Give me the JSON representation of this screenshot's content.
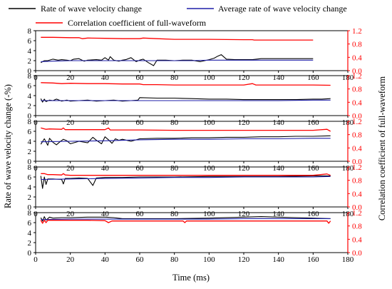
{
  "legend": [
    {
      "label": "Rate of wave velocity change",
      "color": "#000000"
    },
    {
      "label": "Average rate of wave velocity change",
      "color": "#1f1fa8"
    },
    {
      "label": "Correlation coefficient of full-waveform",
      "color": "#ff0000"
    }
  ],
  "xlabel": "Time (ms)",
  "ylabel_left": "Rate of wave velocity change (-%)",
  "ylabel_right": "Correlation coefficient of full-waveform",
  "colors": {
    "rate": "#000000",
    "average": "#1f1fa8",
    "correlation": "#ff0000"
  },
  "chart_data": [
    {
      "type": "line",
      "xlim": [
        0,
        180
      ],
      "ylim_left": [
        0,
        8
      ],
      "ylim_right": [
        0,
        1.2
      ],
      "xticks": [
        "0",
        "20",
        "40",
        "60",
        "80",
        "100",
        "120",
        "140",
        "160",
        "180"
      ],
      "yticks_left": [
        "0",
        "2",
        "4",
        "6",
        "8"
      ],
      "yticks_right": [
        "0.0",
        "0.4",
        "0.8",
        "1.2"
      ],
      "series": [
        {
          "name": "Rate of wave velocity change",
          "axis": "left",
          "x": [
            3,
            5,
            7,
            10,
            13,
            15,
            18,
            20,
            22,
            25,
            28,
            30,
            35,
            38,
            40,
            42,
            43,
            45,
            48,
            50,
            52,
            55,
            58,
            60,
            62,
            65,
            68,
            70,
            75,
            80,
            85,
            90,
            95,
            100,
            103,
            105,
            107,
            110,
            115,
            120,
            125,
            130,
            140,
            150,
            160
          ],
          "y": [
            1.6,
            2.0,
            2.0,
            2.3,
            2.1,
            2.2,
            2.1,
            2.0,
            2.3,
            2.4,
            1.9,
            2.1,
            2.2,
            2.1,
            2.6,
            2.1,
            2.8,
            2.1,
            1.9,
            2.1,
            2.2,
            2.6,
            1.8,
            2.1,
            2.3,
            1.6,
            1.0,
            2.1,
            2.1,
            2.0,
            2.1,
            2.1,
            1.8,
            2.2,
            2.5,
            2.9,
            3.2,
            2.3,
            2.2,
            2.2,
            2.2,
            2.4,
            2.4,
            2.4,
            2.4
          ]
        },
        {
          "name": "Average rate of wave velocity change",
          "axis": "left",
          "x": [
            3,
            10,
            20,
            30,
            40,
            50,
            60,
            70,
            80,
            90,
            100,
            110,
            120,
            130,
            140,
            150,
            160
          ],
          "y": [
            1.8,
            1.9,
            2.0,
            2.0,
            2.0,
            2.0,
            2.0,
            2.0,
            2.0,
            2.0,
            2.1,
            2.1,
            2.1,
            2.1,
            2.1,
            2.1,
            2.1
          ]
        },
        {
          "name": "Correlation coefficient of full-waveform",
          "axis": "right",
          "x": [
            3,
            10,
            20,
            25,
            27,
            30,
            40,
            50,
            60,
            62,
            70,
            80,
            100,
            120,
            125,
            126,
            140,
            160
          ],
          "y": [
            1.0,
            1.0,
            0.99,
            0.99,
            0.96,
            0.98,
            0.97,
            0.96,
            0.96,
            0.98,
            0.96,
            0.94,
            0.94,
            0.93,
            0.93,
            0.92,
            0.92,
            0.92
          ]
        }
      ]
    },
    {
      "type": "line",
      "xlim": [
        0,
        180
      ],
      "ylim_left": [
        0,
        8
      ],
      "ylim_right": [
        0,
        1.2
      ],
      "xticks": [
        "0",
        "20",
        "40",
        "60",
        "80",
        "100",
        "120",
        "140",
        "160",
        "180"
      ],
      "yticks_left": [
        "0",
        "2",
        "4",
        "6",
        "8"
      ],
      "yticks_right": [
        "0.0",
        "0.4",
        "0.8",
        "1.2"
      ],
      "series": [
        {
          "name": "Rate of wave velocity change",
          "axis": "left",
          "x": [
            3,
            4,
            5,
            6,
            8,
            10,
            12,
            15,
            18,
            20,
            25,
            30,
            35,
            40,
            45,
            50,
            55,
            59,
            60,
            70,
            80,
            90,
            100,
            110,
            120,
            130,
            140,
            150,
            160,
            165,
            170
          ],
          "y": [
            3.4,
            2.7,
            3.3,
            2.8,
            3.1,
            3.0,
            3.3,
            2.9,
            3.1,
            2.9,
            3.0,
            3.1,
            2.9,
            3.0,
            3.1,
            2.9,
            3.0,
            3.1,
            3.6,
            3.5,
            3.5,
            3.4,
            3.3,
            3.3,
            3.2,
            3.2,
            3.2,
            3.2,
            3.3,
            3.3,
            3.4
          ]
        },
        {
          "name": "Average rate of wave velocity change",
          "axis": "left",
          "x": [
            3,
            20,
            40,
            60,
            80,
            100,
            120,
            140,
            160,
            170
          ],
          "y": [
            3.0,
            3.0,
            3.0,
            3.0,
            3.0,
            3.0,
            3.0,
            3.0,
            3.1,
            3.1
          ]
        },
        {
          "name": "Correlation coefficient of full-waveform",
          "axis": "right",
          "x": [
            3,
            10,
            15,
            20,
            30,
            40,
            50,
            60,
            62,
            70,
            80,
            100,
            120,
            125,
            127,
            140,
            160,
            170
          ],
          "y": [
            0.99,
            0.98,
            0.96,
            0.97,
            0.96,
            0.96,
            0.95,
            0.95,
            0.93,
            0.93,
            0.92,
            0.92,
            0.92,
            0.96,
            0.92,
            0.92,
            0.92,
            0.91
          ]
        }
      ]
    },
    {
      "type": "line",
      "xlim": [
        0,
        180
      ],
      "ylim_left": [
        0,
        8
      ],
      "ylim_right": [
        0,
        1.2
      ],
      "xticks": [
        "0",
        "20",
        "40",
        "60",
        "80",
        "100",
        "120",
        "140",
        "160",
        "180"
      ],
      "yticks_left": [
        "0",
        "2",
        "4",
        "6",
        "8"
      ],
      "yticks_right": [
        "0.0",
        "0.4",
        "0.8",
        "1.2"
      ],
      "series": [
        {
          "name": "Rate of wave velocity change",
          "axis": "left",
          "x": [
            3,
            5,
            7,
            8,
            10,
            12,
            14,
            16,
            18,
            20,
            25,
            30,
            33,
            35,
            38,
            40,
            42,
            44,
            46,
            48,
            50,
            55,
            60,
            70,
            80,
            90,
            100,
            110,
            120,
            130,
            140,
            150,
            160,
            170
          ],
          "y": [
            3.4,
            4.5,
            3.2,
            4.6,
            3.8,
            3.3,
            3.9,
            4.4,
            4.1,
            3.5,
            4.0,
            3.7,
            4.8,
            4.2,
            3.5,
            4.9,
            4.3,
            3.6,
            4.5,
            4.2,
            4.4,
            4.0,
            4.5,
            4.6,
            4.6,
            4.7,
            4.7,
            4.8,
            4.8,
            4.9,
            4.9,
            5.0,
            5.0,
            5.1
          ]
        },
        {
          "name": "Average rate of wave velocity change",
          "axis": "left",
          "x": [
            3,
            20,
            40,
            60,
            80,
            100,
            120,
            140,
            160,
            170
          ],
          "y": [
            3.9,
            4.0,
            4.1,
            4.3,
            4.4,
            4.4,
            4.5,
            4.5,
            4.6,
            4.6
          ]
        },
        {
          "name": "Correlation coefficient of full-waveform",
          "axis": "right",
          "x": [
            3,
            6,
            8,
            15,
            16,
            17,
            30,
            40,
            42,
            43,
            60,
            80,
            100,
            120,
            140,
            160,
            168,
            170
          ],
          "y": [
            1.0,
            0.96,
            0.97,
            0.96,
            1.0,
            0.95,
            0.95,
            0.95,
            1.0,
            0.94,
            0.94,
            0.93,
            0.93,
            0.93,
            0.93,
            0.93,
            0.96,
            0.9
          ]
        }
      ]
    },
    {
      "type": "line",
      "xlim": [
        0,
        180
      ],
      "ylim_left": [
        0,
        8
      ],
      "ylim_right": [
        0,
        1.2
      ],
      "xticks": [
        "0",
        "20",
        "40",
        "60",
        "80",
        "100",
        "120",
        "140",
        "160",
        "180"
      ],
      "yticks_left": [
        "0",
        "2",
        "4",
        "6",
        "8"
      ],
      "yticks_right": [
        "0.0",
        "0.4",
        "0.8",
        "1.2"
      ],
      "series": [
        {
          "name": "Rate of wave velocity change",
          "axis": "left",
          "x": [
            3,
            4,
            5,
            6,
            7,
            10,
            15,
            16,
            17,
            20,
            25,
            30,
            33,
            35,
            40,
            50,
            60,
            80,
            100,
            120,
            140,
            160,
            170
          ],
          "y": [
            6.2,
            3.7,
            6.0,
            4.5,
            5.6,
            5.6,
            5.5,
            4.6,
            5.7,
            5.7,
            5.8,
            5.7,
            4.3,
            5.8,
            5.9,
            5.9,
            6.0,
            6.0,
            6.1,
            6.1,
            6.1,
            6.2,
            6.2
          ]
        },
        {
          "name": "Average rate of wave velocity change",
          "axis": "left",
          "x": [
            3,
            20,
            40,
            60,
            80,
            100,
            120,
            140,
            160,
            170
          ],
          "y": [
            5.5,
            5.6,
            5.7,
            5.8,
            5.9,
            5.9,
            6.0,
            6.0,
            6.0,
            6.1
          ]
        },
        {
          "name": "Correlation coefficient of full-waveform",
          "axis": "right",
          "x": [
            3,
            5,
            7,
            10,
            15,
            16,
            17,
            20,
            25,
            40,
            60,
            80,
            100,
            120,
            140,
            160,
            168,
            170
          ],
          "y": [
            1.0,
            1.0,
            0.97,
            0.97,
            0.96,
            1.0,
            0.96,
            0.95,
            0.95,
            0.95,
            0.95,
            0.95,
            0.95,
            0.95,
            0.95,
            0.95,
            0.99,
            0.95
          ]
        }
      ]
    },
    {
      "type": "line",
      "xlim": [
        0,
        180
      ],
      "ylim_left": [
        0,
        8
      ],
      "ylim_right": [
        0,
        1.2
      ],
      "xticks": [
        "0",
        "20",
        "40",
        "60",
        "80",
        "100",
        "120",
        "140",
        "160",
        "180"
      ],
      "yticks_left": [
        "0",
        "2",
        "4",
        "6",
        "8"
      ],
      "yticks_right": [
        "0.0",
        "0.4",
        "0.8",
        "1.2"
      ],
      "series": [
        {
          "name": "Rate of wave velocity change",
          "axis": "left",
          "x": [
            3,
            4,
            5,
            6,
            8,
            10,
            15,
            20,
            30,
            40,
            45,
            50,
            60,
            70,
            80,
            100,
            120,
            130,
            140,
            150,
            160,
            170
          ],
          "y": [
            7.0,
            6.3,
            7.2,
            6.5,
            7.1,
            6.9,
            7.0,
            7.0,
            7.1,
            7.1,
            7.0,
            6.8,
            6.8,
            6.8,
            6.8,
            6.9,
            7.1,
            7.2,
            7.1,
            7.0,
            6.9,
            6.8
          ]
        },
        {
          "name": "Average rate of wave velocity change",
          "axis": "left",
          "x": [
            3,
            20,
            40,
            60,
            80,
            100,
            120,
            140,
            160,
            170
          ],
          "y": [
            6.6,
            6.7,
            6.7,
            6.7,
            6.7,
            6.7,
            6.8,
            6.8,
            6.8,
            6.8
          ]
        },
        {
          "name": "Correlation coefficient of full-waveform",
          "axis": "right",
          "x": [
            3,
            4,
            5,
            6,
            7,
            10,
            20,
            30,
            40,
            42,
            44,
            60,
            85,
            86,
            87,
            100,
            120,
            160,
            168,
            169,
            170
          ],
          "y": [
            0.97,
            0.88,
            0.97,
            0.9,
            0.97,
            0.97,
            0.97,
            0.97,
            0.96,
            0.9,
            0.95,
            0.95,
            0.95,
            0.9,
            0.95,
            0.95,
            0.95,
            0.95,
            0.95,
            0.88,
            0.95
          ]
        }
      ]
    }
  ]
}
